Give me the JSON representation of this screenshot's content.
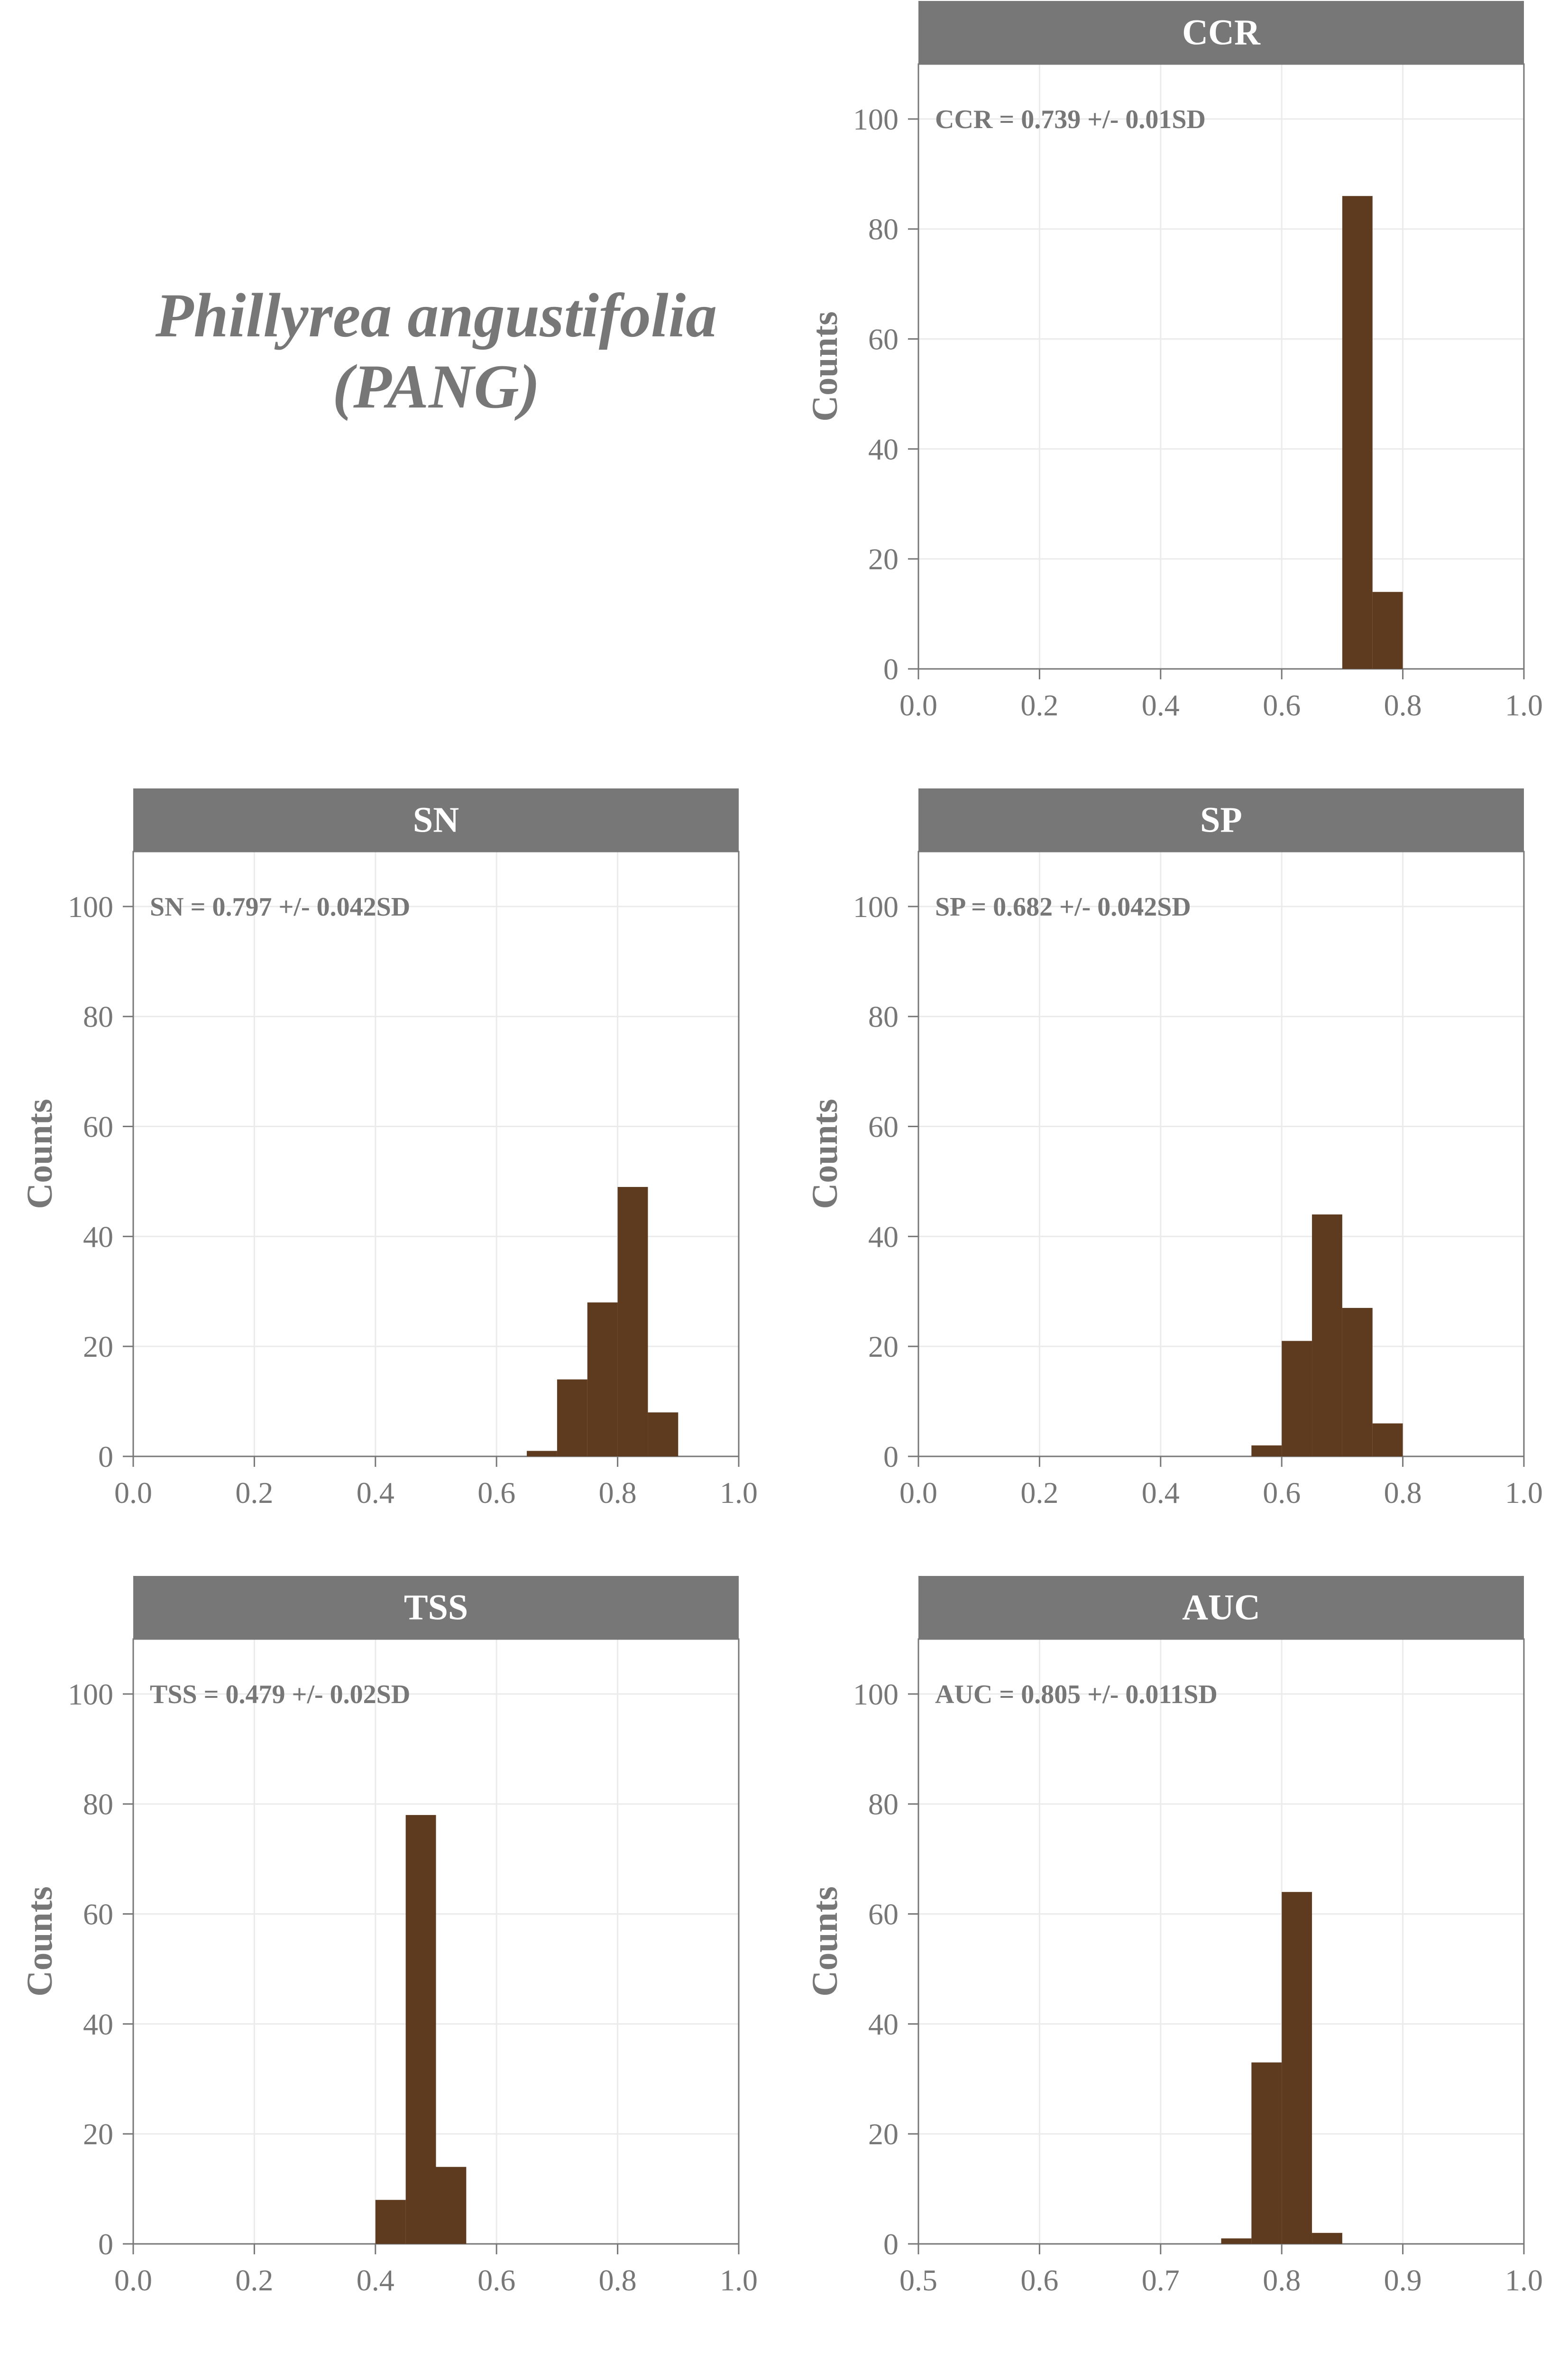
{
  "title": {
    "line1": "Phillyrea angustifolia",
    "line2": "(PANG)"
  },
  "colors": {
    "bar": "#5E3A1F",
    "strip": "#777777",
    "strip_text": "#FFFFFF",
    "text": "#777777",
    "grid": "#EBEBEB",
    "axis": "#777777"
  },
  "chart_data": [
    {
      "type": "bar",
      "id": "ccr",
      "title": "CCR",
      "annotation": "CCR = 0.739 +/- 0.01SD",
      "ylabel": "Counts",
      "xlim": [
        0.0,
        1.0
      ],
      "ylim": [
        0,
        110
      ],
      "xticks": [
        "0.0",
        "0.2",
        "0.4",
        "0.6",
        "0.8",
        "1.0"
      ],
      "yticks": [
        "0",
        "20",
        "40",
        "60",
        "80",
        "100"
      ],
      "bin_width": 0.05,
      "bins": [
        {
          "x": 0.7,
          "count": 86
        },
        {
          "x": 0.75,
          "count": 14
        }
      ]
    },
    {
      "type": "bar",
      "id": "sn",
      "title": "SN",
      "annotation": "SN = 0.797 +/- 0.042SD",
      "ylabel": "Counts",
      "xlim": [
        0.0,
        1.0
      ],
      "ylim": [
        0,
        110
      ],
      "xticks": [
        "0.0",
        "0.2",
        "0.4",
        "0.6",
        "0.8",
        "1.0"
      ],
      "yticks": [
        "0",
        "20",
        "40",
        "60",
        "80",
        "100"
      ],
      "bin_width": 0.05,
      "bins": [
        {
          "x": 0.65,
          "count": 1
        },
        {
          "x": 0.7,
          "count": 14
        },
        {
          "x": 0.75,
          "count": 28
        },
        {
          "x": 0.8,
          "count": 49
        },
        {
          "x": 0.85,
          "count": 8
        }
      ]
    },
    {
      "type": "bar",
      "id": "sp",
      "title": "SP",
      "annotation": "SP = 0.682 +/- 0.042SD",
      "ylabel": "Counts",
      "xlim": [
        0.0,
        1.0
      ],
      "ylim": [
        0,
        110
      ],
      "xticks": [
        "0.0",
        "0.2",
        "0.4",
        "0.6",
        "0.8",
        "1.0"
      ],
      "yticks": [
        "0",
        "20",
        "40",
        "60",
        "80",
        "100"
      ],
      "bin_width": 0.05,
      "bins": [
        {
          "x": 0.55,
          "count": 2
        },
        {
          "x": 0.6,
          "count": 21
        },
        {
          "x": 0.65,
          "count": 44
        },
        {
          "x": 0.7,
          "count": 27
        },
        {
          "x": 0.75,
          "count": 6
        }
      ]
    },
    {
      "type": "bar",
      "id": "tss",
      "title": "TSS",
      "annotation": "TSS = 0.479 +/- 0.02SD",
      "ylabel": "Counts",
      "xlim": [
        0.0,
        1.0
      ],
      "ylim": [
        0,
        110
      ],
      "xticks": [
        "0.0",
        "0.2",
        "0.4",
        "0.6",
        "0.8",
        "1.0"
      ],
      "yticks": [
        "0",
        "20",
        "40",
        "60",
        "80",
        "100"
      ],
      "bin_width": 0.05,
      "bins": [
        {
          "x": 0.4,
          "count": 8
        },
        {
          "x": 0.45,
          "count": 78
        },
        {
          "x": 0.5,
          "count": 14
        }
      ]
    },
    {
      "type": "bar",
      "id": "auc",
      "title": "AUC",
      "annotation": "AUC = 0.805 +/- 0.011SD",
      "ylabel": "Counts",
      "xlim": [
        0.5,
        1.0
      ],
      "ylim": [
        0,
        110
      ],
      "xticks": [
        "0.5",
        "0.6",
        "0.7",
        "0.8",
        "0.9",
        "1.0"
      ],
      "yticks": [
        "0",
        "20",
        "40",
        "60",
        "80",
        "100"
      ],
      "bin_width": 0.025,
      "bins": [
        {
          "x": 0.75,
          "count": 1
        },
        {
          "x": 0.775,
          "count": 33
        },
        {
          "x": 0.8,
          "count": 64
        },
        {
          "x": 0.825,
          "count": 2
        }
      ]
    }
  ]
}
